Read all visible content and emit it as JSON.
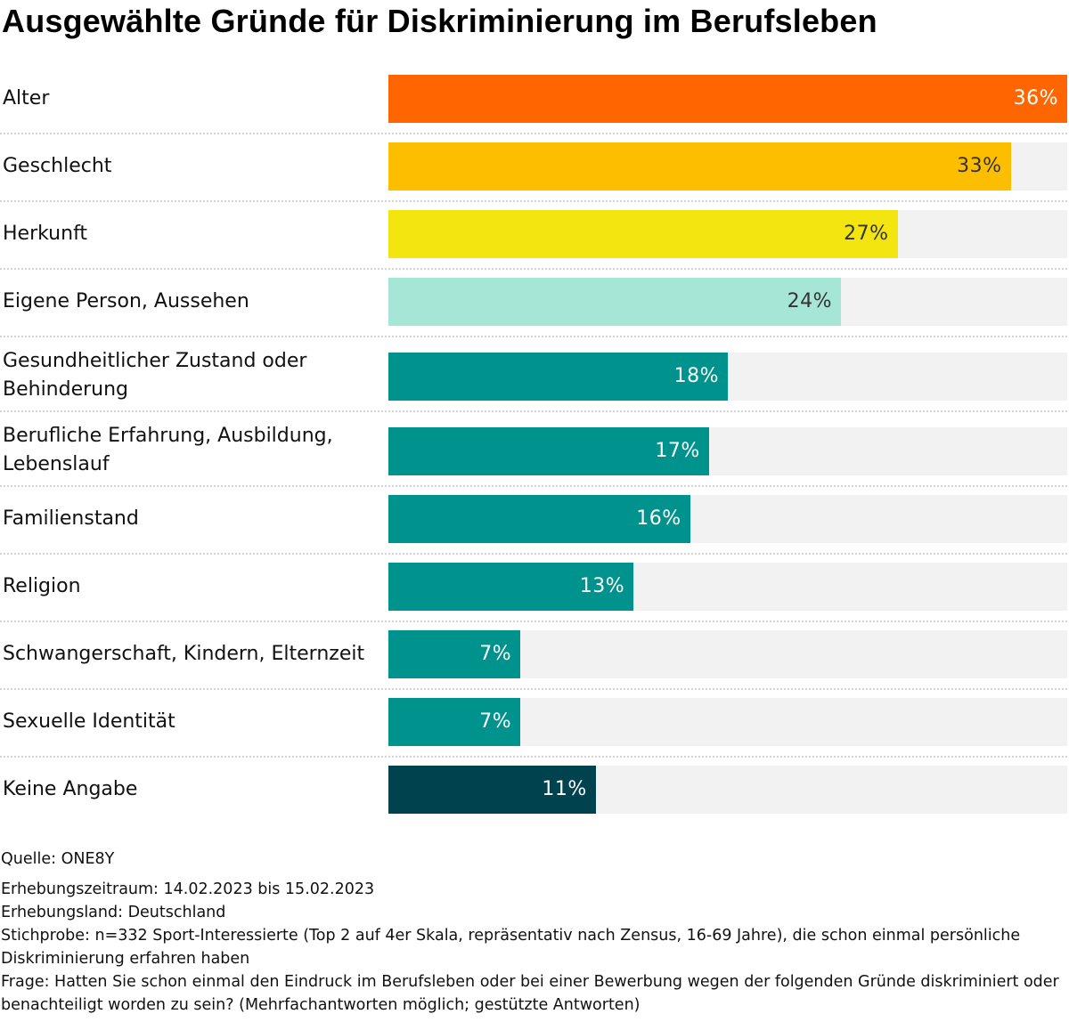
{
  "title": "Ausgewählte Gründe für Diskriminierung im Berufsleben",
  "footer": {
    "source": "Quelle: ONE8Y",
    "lines": [
      "Erhebungszeitraum: 14.02.2023 bis 15.02.2023",
      "Erhebungsland: Deutschland",
      "Stichprobe: n=332 Sport-Interessierte (Top 2 auf 4er Skala, repräsentativ nach Zensus, 16-69 Jahre), die schon einmal persönliche Diskriminierung erfahren haben",
      "Frage: Hatten Sie schon einmal den Eindruck im Berufsleben oder bei einer Bewerbung wegen der folgenden Gründe diskriminiert oder benachteiligt worden zu sein? (Mehrfachantworten möglich; gestützte Antworten)"
    ]
  },
  "chart_data": {
    "type": "bar",
    "orientation": "horizontal",
    "title": "Ausgewählte Gründe für Diskriminierung im Berufsleben",
    "xlabel": "",
    "ylabel": "",
    "xlim": [
      0,
      36
    ],
    "grid": false,
    "unit": "%",
    "categories": [
      "Alter",
      "Geschlecht",
      "Herkunft",
      "Eigene Person, Aussehen",
      "Gesundheitlicher Zustand oder Behinderung",
      "Berufliche Erfahrung, Ausbildung, Lebenslauf",
      "Familienstand",
      "Religion",
      "Schwangerschaft, Kindern, Elternzeit",
      "Sexuelle Identität",
      "Keine Angabe"
    ],
    "values": [
      36,
      33,
      27,
      24,
      18,
      17,
      16,
      13,
      7,
      7,
      11
    ],
    "data_labels": [
      "36%",
      "33%",
      "27%",
      "24%",
      "18%",
      "17%",
      "16%",
      "13%",
      "7%",
      "7%",
      "11%"
    ],
    "colors": [
      "#ff6600",
      "#fdbe00",
      "#f3e50f",
      "#a6e6d6",
      "#00928c",
      "#00928c",
      "#00928c",
      "#00928c",
      "#00928c",
      "#00928c",
      "#00434f"
    ],
    "label_colors": [
      "#ffffff",
      "#333333",
      "#333333",
      "#333333",
      "#ffffff",
      "#ffffff",
      "#ffffff",
      "#ffffff",
      "#ffffff",
      "#ffffff",
      "#ffffff"
    ],
    "track_color": "#f2f2f2"
  }
}
